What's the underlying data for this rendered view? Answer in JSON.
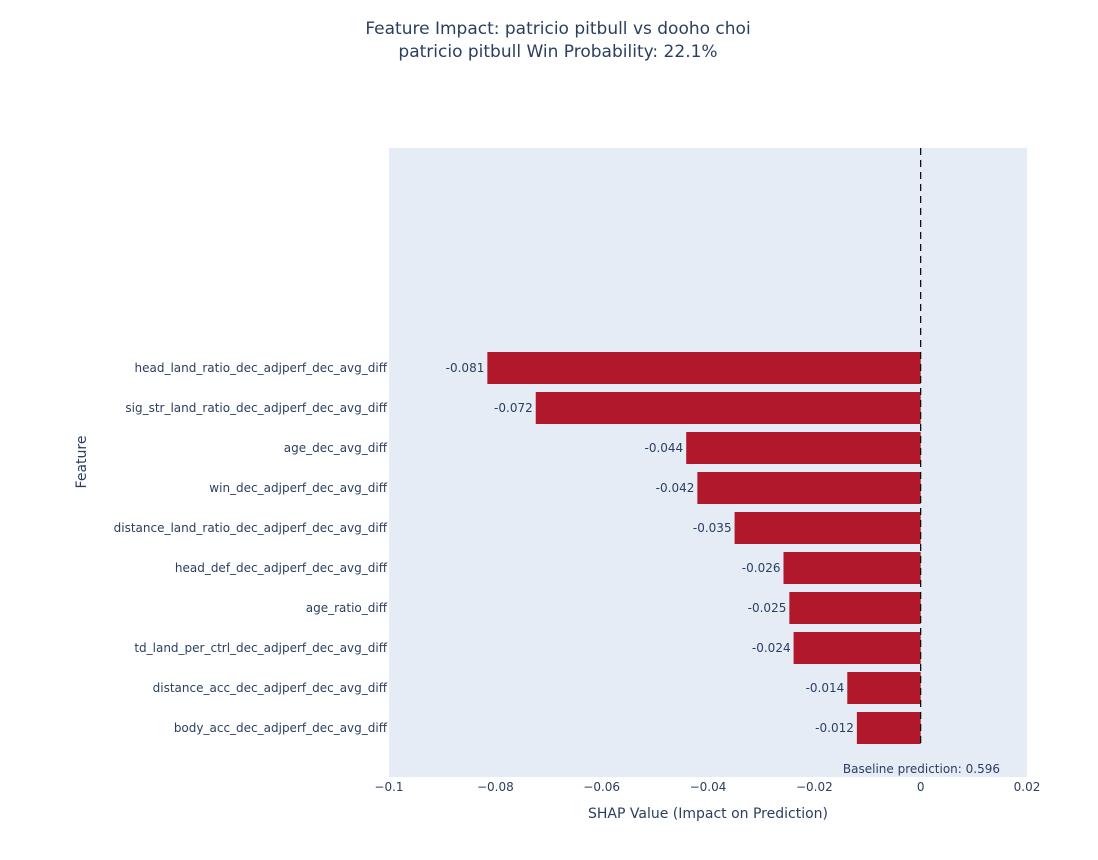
{
  "chart_data": {
    "type": "bar",
    "orientation": "horizontal",
    "title": "Feature Impact: patricio pitbull vs dooho choi",
    "subtitle": "patricio pitbull Win Probability: 22.1%",
    "xlabel": "SHAP Value (Impact on Prediction)",
    "ylabel": "Feature",
    "xlim": [
      -0.1,
      0.02
    ],
    "xticks": [
      -0.1,
      -0.08,
      -0.06,
      -0.04,
      -0.02,
      0,
      0.02
    ],
    "xtick_labels": [
      "−0.1",
      "−0.08",
      "−0.06",
      "−0.04",
      "−0.02",
      "0",
      "0.02"
    ],
    "categories": [
      "head_land_ratio_dec_adjperf_dec_avg_diff",
      "sig_str_land_ratio_dec_adjperf_dec_avg_diff",
      "age_dec_avg_diff",
      "win_dec_adjperf_dec_avg_diff",
      "distance_land_ratio_dec_adjperf_dec_avg_diff",
      "head_def_dec_adjperf_dec_avg_diff",
      "age_ratio_diff",
      "td_land_per_ctrl_dec_adjperf_dec_avg_diff",
      "distance_acc_dec_adjperf_dec_avg_diff",
      "body_acc_dec_adjperf_dec_avg_diff"
    ],
    "values": [
      -0.0815,
      -0.0724,
      -0.0441,
      -0.042,
      -0.035,
      -0.0258,
      -0.0247,
      -0.0239,
      -0.0138,
      -0.012
    ],
    "value_labels": [
      "-0.081",
      "-0.072",
      "-0.044",
      "-0.042",
      "-0.035",
      "-0.026",
      "-0.025",
      "-0.024",
      "-0.014",
      "-0.012"
    ],
    "bar_color": "#b2182b",
    "plot_background": "#e5ecf6",
    "reference_line": {
      "x": 0,
      "style": "dashed"
    },
    "annotation": "Baseline prediction: 0.596",
    "grid": false
  }
}
